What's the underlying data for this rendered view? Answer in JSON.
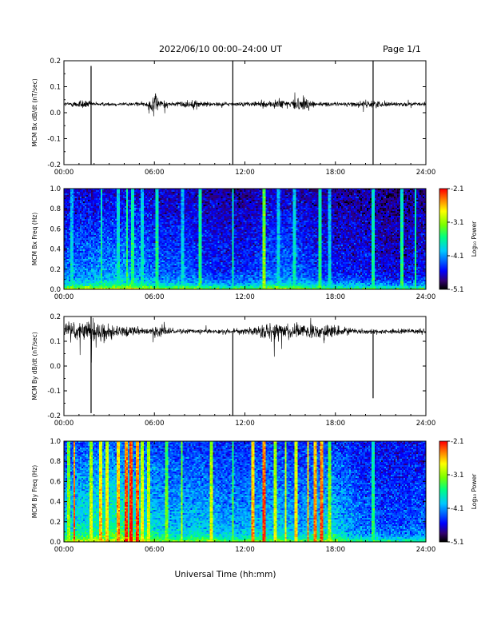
{
  "header": {
    "title": "2022/06/10  00:00–24:00 UT",
    "page": "Page 1/1"
  },
  "x_axis_title": "Universal Time (hh:mm)",
  "colorbar": {
    "label": "Log₁₀ Power",
    "ticks": [
      "-2.1",
      "-3.1",
      "-4.1",
      "-5.1"
    ],
    "min": -5.1,
    "max": -2.1
  },
  "chart_data": [
    {
      "type": "line",
      "name": "bx-line",
      "ylabel": "MCM Bx dB/dt (nT/sec)",
      "x_range_hours": [
        0,
        24
      ],
      "x_ticks": [
        "00:00",
        "06:00",
        "12:00",
        "18:00",
        "24:00"
      ],
      "ylim": [
        -0.2,
        0.2
      ],
      "y_ticks": [
        "0.2",
        "0.1",
        "0.0",
        "-0.1",
        "-0.2"
      ],
      "baseline": 0.033,
      "noise_amplitude": 0.007,
      "bursts": [
        {
          "t": 1.2,
          "w": 0.5,
          "a": 0.012
        },
        {
          "t": 5.9,
          "w": 0.25,
          "a": 0.03
        },
        {
          "t": 6.3,
          "w": 0.4,
          "a": 0.015
        },
        {
          "t": 8.5,
          "w": 1.0,
          "a": 0.008
        },
        {
          "t": 14.5,
          "w": 1.5,
          "a": 0.012
        },
        {
          "t": 16.0,
          "w": 0.6,
          "a": 0.014
        },
        {
          "t": 20.5,
          "w": 1.2,
          "a": 0.006
        }
      ],
      "spikes": [
        {
          "t": 1.8,
          "low": -0.2,
          "high": 0.18
        },
        {
          "t": 11.2,
          "low": -0.2,
          "high": 0.2
        },
        {
          "t": 20.5,
          "low": -0.2,
          "high": 0.2
        }
      ]
    },
    {
      "type": "heatmap",
      "name": "bx-spectrogram",
      "ylabel": "MCM Bx Freq (Hz)",
      "x_range_hours": [
        0,
        24
      ],
      "x_ticks": [
        "00:00",
        "06:00",
        "12:00",
        "18:00",
        "24:00"
      ],
      "ylim": [
        0.0,
        1.0
      ],
      "y_ticks": [
        "1.0",
        "0.8",
        "0.6",
        "0.4",
        "0.2",
        "0.0"
      ],
      "zlim": [
        -5.1,
        -2.1
      ],
      "base_level": -4.45,
      "low_freq_level": -3.2,
      "activity": [
        {
          "t": 1.5,
          "w": 2.5,
          "a": 0.35
        },
        {
          "t": 4.5,
          "w": 2.0,
          "a": 0.35
        },
        {
          "t": 8.0,
          "w": 2.0,
          "a": 0.2
        },
        {
          "t": 14.5,
          "w": 2.0,
          "a": 0.3
        },
        {
          "t": 22.0,
          "w": 1.5,
          "a": -0.15
        }
      ],
      "stripes": [
        {
          "t": 0.5,
          "v": -3.9
        },
        {
          "t": 2.5,
          "v": -3.7
        },
        {
          "t": 3.6,
          "v": -3.8
        },
        {
          "t": 4.2,
          "v": -3.5
        },
        {
          "t": 4.6,
          "v": -3.6
        },
        {
          "t": 5.2,
          "v": -3.8
        },
        {
          "t": 6.2,
          "v": -3.6
        },
        {
          "t": 7.9,
          "v": -3.9
        },
        {
          "t": 9.0,
          "v": -3.6
        },
        {
          "t": 11.2,
          "v": -3.7
        },
        {
          "t": 13.3,
          "v": -3.2
        },
        {
          "t": 14.2,
          "v": -3.9
        },
        {
          "t": 15.3,
          "v": -3.8
        },
        {
          "t": 17.0,
          "v": -3.6
        },
        {
          "t": 17.6,
          "v": -3.9
        },
        {
          "t": 20.5,
          "v": -3.7
        },
        {
          "t": 22.4,
          "v": -3.6
        },
        {
          "t": 23.3,
          "v": -3.6
        }
      ]
    },
    {
      "type": "line",
      "name": "by-line",
      "ylabel": "MCM By dB/dt (nT/sec)",
      "x_range_hours": [
        0,
        24
      ],
      "x_ticks": [
        "00:00",
        "06:00",
        "12:00",
        "18:00",
        "24:00"
      ],
      "ylim": [
        -0.2,
        0.2
      ],
      "y_ticks": [
        "0.2",
        "0.1",
        "0.0",
        "-0.1",
        "-0.2"
      ],
      "baseline": 0.14,
      "noise_amplitude": 0.009,
      "bursts": [
        {
          "t": 0.6,
          "w": 0.8,
          "a": 0.02
        },
        {
          "t": 2.0,
          "w": 1.2,
          "a": 0.03
        },
        {
          "t": 4.3,
          "w": 0.8,
          "a": 0.014
        },
        {
          "t": 6.4,
          "w": 0.5,
          "a": 0.018
        },
        {
          "t": 13.5,
          "w": 1.2,
          "a": 0.018
        },
        {
          "t": 15.5,
          "w": 2.0,
          "a": 0.018
        },
        {
          "t": 17.5,
          "w": 1.2,
          "a": 0.012
        }
      ],
      "spikes": [
        {
          "t": 1.8,
          "low": -0.19,
          "high": 0.2
        },
        {
          "t": 11.2,
          "low": -0.2,
          "high": 0.14
        },
        {
          "t": 20.5,
          "low": -0.13,
          "high": 0.14
        }
      ]
    },
    {
      "type": "heatmap",
      "name": "by-spectrogram",
      "ylabel": "MCM By Freq (Hz)",
      "x_range_hours": [
        0,
        24
      ],
      "x_ticks": [
        "00:00",
        "06:00",
        "12:00",
        "18:00",
        "24:00"
      ],
      "ylim": [
        0.0,
        1.0
      ],
      "y_ticks": [
        "1.0",
        "0.8",
        "0.6",
        "0.4",
        "0.2",
        "0.0"
      ],
      "zlim": [
        -5.1,
        -2.1
      ],
      "base_level": -4.2,
      "low_freq_level": -3.4,
      "activity": [
        {
          "t": 1.5,
          "w": 3.0,
          "a": 0.45
        },
        {
          "t": 4.5,
          "w": 2.5,
          "a": 0.5
        },
        {
          "t": 9.0,
          "w": 2.0,
          "a": 0.3
        },
        {
          "t": 13.5,
          "w": 2.0,
          "a": 0.35
        },
        {
          "t": 17.5,
          "w": 1.5,
          "a": 0.4
        },
        {
          "t": 22.0,
          "w": 2.0,
          "a": -0.1
        }
      ],
      "stripes": [
        {
          "t": 0.3,
          "v": -3.2
        },
        {
          "t": 0.7,
          "v": -2.4
        },
        {
          "t": 1.8,
          "v": -3.0
        },
        {
          "t": 2.4,
          "v": -2.7
        },
        {
          "t": 2.9,
          "v": -2.8
        },
        {
          "t": 3.6,
          "v": -2.6
        },
        {
          "t": 4.1,
          "v": -2.3
        },
        {
          "t": 4.5,
          "v": -2.2
        },
        {
          "t": 4.9,
          "v": -2.4
        },
        {
          "t": 5.2,
          "v": -2.9
        },
        {
          "t": 5.6,
          "v": -3.0
        },
        {
          "t": 6.8,
          "v": -3.3
        },
        {
          "t": 7.8,
          "v": -3.2
        },
        {
          "t": 9.8,
          "v": -3.0
        },
        {
          "t": 11.2,
          "v": -3.4
        },
        {
          "t": 12.5,
          "v": -2.6
        },
        {
          "t": 13.3,
          "v": -2.3
        },
        {
          "t": 14.0,
          "v": -3.0
        },
        {
          "t": 14.7,
          "v": -2.9
        },
        {
          "t": 15.4,
          "v": -2.8
        },
        {
          "t": 16.2,
          "v": -2.6
        },
        {
          "t": 16.7,
          "v": -2.5
        },
        {
          "t": 17.1,
          "v": -2.4
        },
        {
          "t": 17.6,
          "v": -3.2
        },
        {
          "t": 20.5,
          "v": -3.6
        }
      ]
    }
  ]
}
